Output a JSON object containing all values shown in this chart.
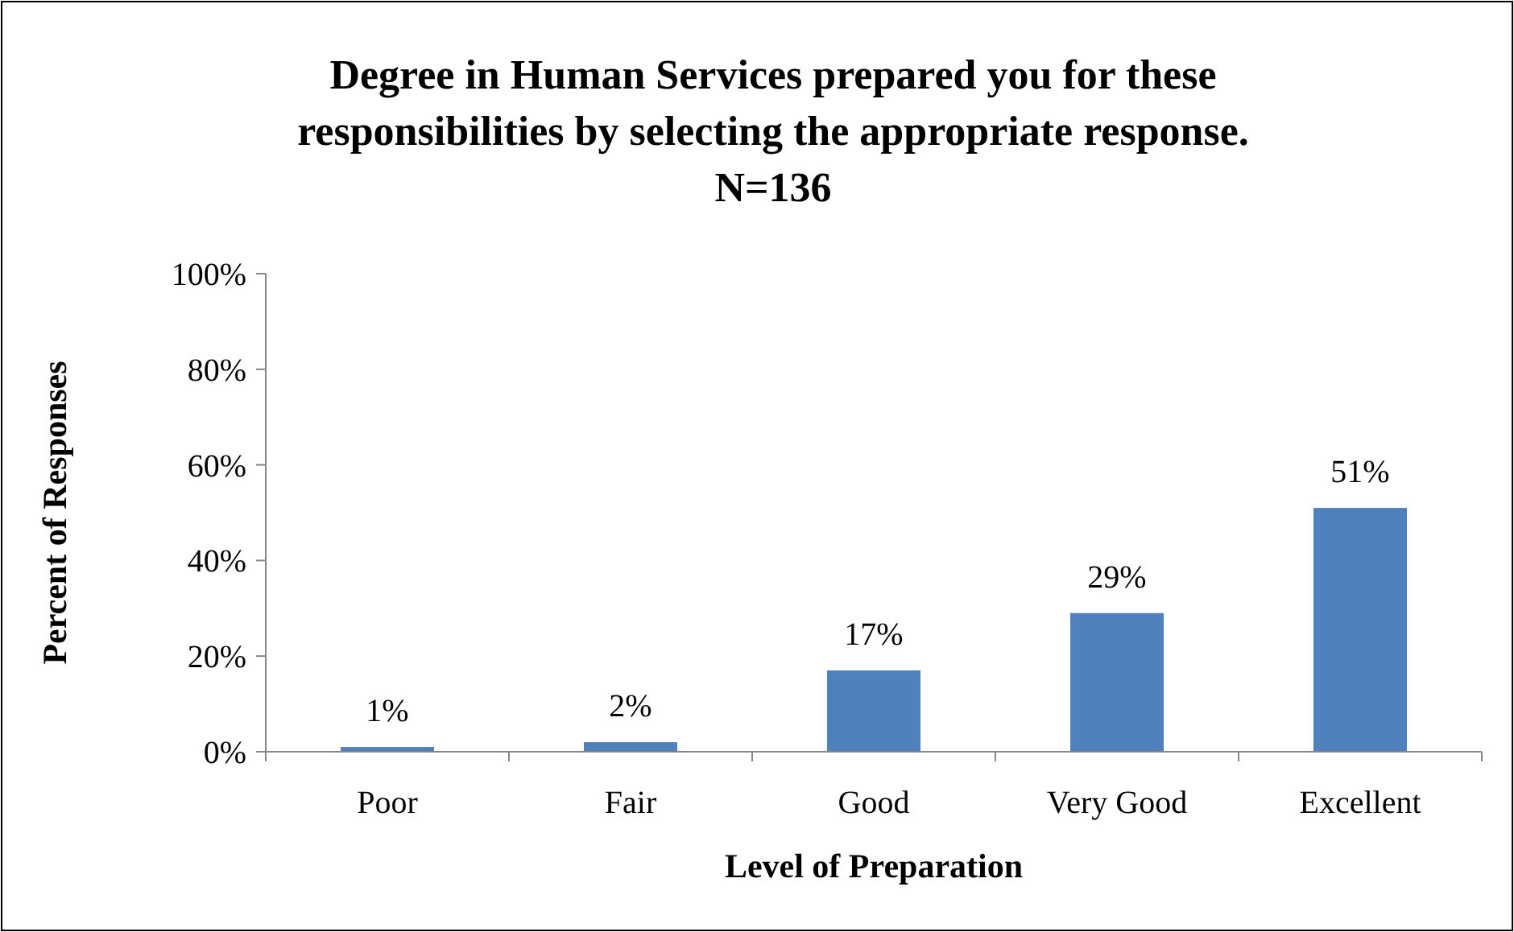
{
  "chart_data": {
    "type": "bar",
    "title": "Degree in Human Services prepared you for these\nresponsibilities by selecting the appropriate response.\nN=136",
    "xlabel": "Level of Preparation",
    "ylabel": "Percent of Responses",
    "categories": [
      "Poor",
      "Fair",
      "Good",
      "Very Good",
      "Excellent"
    ],
    "values": [
      1,
      2,
      17,
      29,
      51
    ],
    "value_labels": [
      "1%",
      "2%",
      "17%",
      "29%",
      "51%"
    ],
    "color": "#4f81bd",
    "ylim": [
      0,
      100
    ],
    "yticks": [
      {
        "value": 0,
        "label": "0%"
      },
      {
        "value": 20,
        "label": "20%"
      },
      {
        "value": 40,
        "label": "40%"
      },
      {
        "value": 60,
        "label": "60%"
      },
      {
        "value": 80,
        "label": "80%"
      },
      {
        "value": 100,
        "label": "100%"
      }
    ],
    "grid": false
  }
}
